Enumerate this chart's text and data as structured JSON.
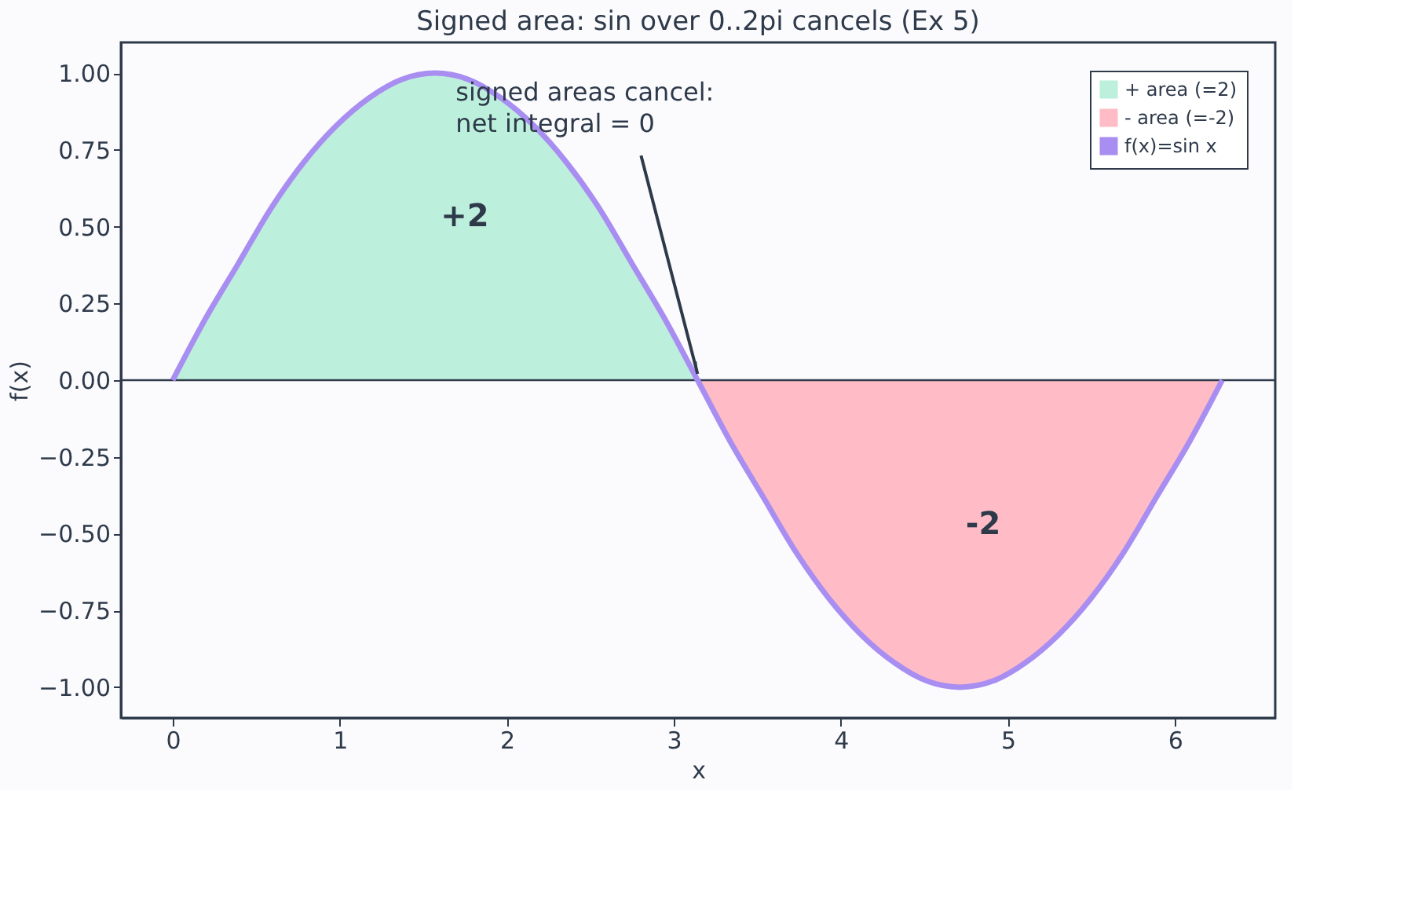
{
  "chart_data": {
    "type": "line",
    "title": "Signed area: sin over 0..2pi cancels (Ex 5)",
    "xlabel": "x",
    "ylabel": "f(x)",
    "series": [
      {
        "name": "+ area (=2)",
        "type": "area",
        "color": "#bdf0dc",
        "x": [
          0,
          0.196,
          0.393,
          0.589,
          0.785,
          0.982,
          1.178,
          1.374,
          1.571,
          1.767,
          1.963,
          2.16,
          2.356,
          2.553,
          2.749,
          2.945,
          3.142
        ],
        "values": [
          0,
          0.2,
          0.38,
          0.56,
          0.71,
          0.83,
          0.92,
          0.98,
          1,
          0.98,
          0.92,
          0.83,
          0.71,
          0.56,
          0.38,
          0.2,
          0
        ]
      },
      {
        "name": "- area (=-2)",
        "type": "area",
        "color": "#ffbcc6",
        "x": [
          3.142,
          3.338,
          3.534,
          3.731,
          3.927,
          4.123,
          4.32,
          4.516,
          4.712,
          4.909,
          5.105,
          5.301,
          5.498,
          5.694,
          5.89,
          6.087,
          6.283
        ],
        "values": [
          0,
          -0.2,
          -0.38,
          -0.56,
          -0.71,
          -0.83,
          -0.92,
          -0.98,
          -1,
          -0.98,
          -0.92,
          -0.83,
          -0.71,
          -0.56,
          -0.38,
          -0.2,
          0
        ]
      },
      {
        "name": "f(x)=sin x",
        "color": "#a98ef2",
        "x": [
          0,
          0.196,
          0.393,
          0.589,
          0.785,
          0.982,
          1.178,
          1.374,
          1.571,
          1.767,
          1.963,
          2.16,
          2.356,
          2.553,
          2.749,
          2.945,
          3.142,
          3.338,
          3.534,
          3.731,
          3.927,
          4.123,
          4.32,
          4.516,
          4.712,
          4.909,
          5.105,
          5.301,
          5.498,
          5.694,
          5.89,
          6.087,
          6.283
        ],
        "values": [
          0,
          0.2,
          0.38,
          0.56,
          0.71,
          0.83,
          0.92,
          0.98,
          1,
          0.98,
          0.92,
          0.83,
          0.71,
          0.56,
          0.38,
          0.2,
          0,
          -0.2,
          -0.38,
          -0.56,
          -0.71,
          -0.83,
          -0.92,
          -0.98,
          -1,
          -0.98,
          -0.92,
          -0.83,
          -0.71,
          -0.56,
          -0.38,
          -0.2,
          0
        ]
      }
    ],
    "xlim": [
      -0.31,
      6.6
    ],
    "ylim": [
      -1.1,
      1.1
    ],
    "xticks": [
      {
        "value": 0,
        "label": "0"
      },
      {
        "value": 1,
        "label": "1"
      },
      {
        "value": 2,
        "label": "2"
      },
      {
        "value": 3,
        "label": "3"
      },
      {
        "value": 4,
        "label": "4"
      },
      {
        "value": 5,
        "label": "5"
      },
      {
        "value": 6,
        "label": "6"
      }
    ],
    "yticks": [
      {
        "value": -1,
        "label": "−1.00"
      },
      {
        "value": -0.75,
        "label": "−0.75"
      },
      {
        "value": -0.5,
        "label": "−0.50"
      },
      {
        "value": -0.25,
        "label": "−0.25"
      },
      {
        "value": 0,
        "label": "0.00"
      },
      {
        "value": 0.25,
        "label": "0.25"
      },
      {
        "value": 0.5,
        "label": "0.50"
      },
      {
        "value": 0.75,
        "label": "0.75"
      },
      {
        "value": 1,
        "label": "1.00"
      }
    ],
    "ref_lines": [
      {
        "axis": "y",
        "value": 0,
        "color": "#2e3a4a"
      }
    ],
    "annotations": [
      {
        "text": "signed areas cancel:\nnet integral = 0",
        "x": 3.142,
        "y": 0
      },
      "+2",
      "-2"
    ],
    "legend": "top right",
    "grid": false,
    "marker": "none",
    "line_style": "solid"
  }
}
